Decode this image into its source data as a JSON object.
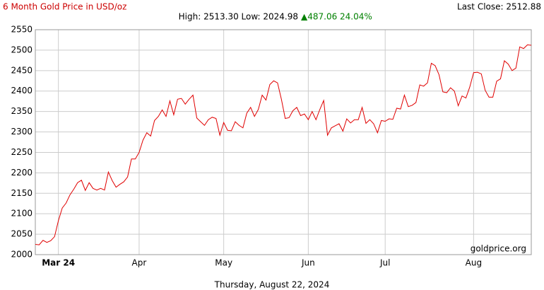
{
  "chart_data": {
    "type": "line",
    "title": "6 Month Gold Price in USD/oz",
    "summary": "High: 2513.30 Low: 2024.98",
    "change": "▲487.06 24.04%",
    "last_close": "Last Close: 2512.88",
    "watermark": "goldprice.org",
    "date_label": "Thursday, August 22, 2024",
    "categories": [
      null,
      null,
      null,
      null,
      null,
      null,
      "Mar 24",
      null,
      null,
      null,
      null,
      null,
      null,
      null,
      null,
      null,
      null,
      null,
      null,
      null,
      null,
      null,
      null,
      null,
      null,
      null,
      null,
      "Apr",
      null,
      null,
      null,
      null,
      null,
      null,
      null,
      null,
      null,
      null,
      null,
      null,
      null,
      null,
      null,
      null,
      null,
      null,
      null,
      null,
      null,
      "May",
      null,
      null,
      null,
      null,
      null,
      null,
      null,
      null,
      null,
      null,
      null,
      null,
      null,
      null,
      null,
      null,
      null,
      null,
      null,
      null,
      null,
      "Jun",
      null,
      null,
      null,
      null,
      null,
      null,
      null,
      null,
      null,
      null,
      null,
      null,
      null,
      null,
      null,
      null,
      null,
      null,
      null,
      "Jul",
      null,
      null,
      null,
      null,
      null,
      null,
      null,
      null,
      null,
      null,
      null,
      null,
      null,
      null,
      null,
      null,
      null,
      null,
      null,
      null,
      null,
      null,
      "Aug",
      null,
      null,
      null,
      null,
      null,
      null,
      null,
      null,
      null,
      null,
      null,
      null,
      null,
      null,
      null
    ],
    "series": [
      {
        "name": "Gold",
        "color": "#e00000",
        "values": [
          2025,
          2024,
          2035,
          2030,
          2034,
          2044,
          2083,
          2114,
          2126,
          2146,
          2160,
          2176,
          2182,
          2157,
          2176,
          2162,
          2158,
          2162,
          2158,
          2202,
          2181,
          2165,
          2172,
          2178,
          2190,
          2234,
          2234,
          2250,
          2280,
          2298,
          2290,
          2328,
          2338,
          2354,
          2338,
          2376,
          2342,
          2380,
          2382,
          2368,
          2380,
          2390,
          2334,
          2325,
          2316,
          2330,
          2336,
          2333,
          2292,
          2323,
          2304,
          2303,
          2325,
          2316,
          2310,
          2346,
          2360,
          2338,
          2355,
          2390,
          2378,
          2416,
          2425,
          2420,
          2380,
          2333,
          2335,
          2352,
          2360,
          2340,
          2344,
          2330,
          2350,
          2330,
          2355,
          2377,
          2292,
          2310,
          2315,
          2320,
          2302,
          2332,
          2322,
          2330,
          2330,
          2360,
          2321,
          2330,
          2320,
          2298,
          2328,
          2326,
          2332,
          2331,
          2358,
          2356,
          2390,
          2362,
          2365,
          2372,
          2415,
          2412,
          2420,
          2468,
          2462,
          2440,
          2398,
          2396,
          2408,
          2400,
          2364,
          2388,
          2383,
          2410,
          2445,
          2446,
          2442,
          2402,
          2385,
          2385,
          2424,
          2430,
          2474,
          2466,
          2450,
          2456,
          2508,
          2504,
          2513,
          2512
        ]
      }
    ],
    "ylim": [
      2000,
      2550
    ],
    "yticks": [
      2000,
      2050,
      2100,
      2150,
      2200,
      2250,
      2300,
      2350,
      2400,
      2450,
      2500,
      2550
    ],
    "grid": true
  }
}
